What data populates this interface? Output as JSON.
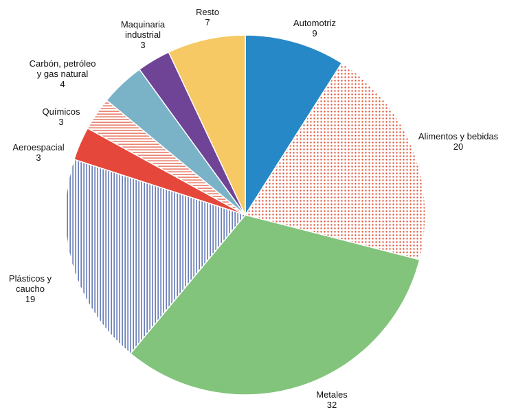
{
  "chart_data": {
    "type": "pie",
    "title": "",
    "categories": [
      "Automotriz",
      "Alimentos y bebidas",
      "Metales",
      "Plásticos y caucho",
      "Aeroespacial",
      "Químicos",
      "Carbón, petróleo y gas natural",
      "Maquinaria industrial",
      "Resto"
    ],
    "values": [
      9,
      20,
      32,
      19,
      3,
      3,
      4,
      3,
      7
    ],
    "slices": [
      {
        "label_lines": [
          "Automotriz"
        ],
        "value_text": "9",
        "value": 9,
        "color": "#2788c8",
        "fill": "solid",
        "fill_bg": "#2788c8"
      },
      {
        "label_lines": [
          "Alimentos y bebidas"
        ],
        "value_text": "20",
        "value": 20,
        "color": "#e0553b",
        "fill": "dots",
        "fill_bg": "#ffffff"
      },
      {
        "label_lines": [
          "Metales"
        ],
        "value_text": "32",
        "value": 32,
        "color": "#82c47c",
        "fill": "solid",
        "fill_bg": "#82c47c"
      },
      {
        "label_lines": [
          "Plásticos y",
          "caucho"
        ],
        "value_text": "19",
        "value": 19,
        "color": "#2f4b9b",
        "fill": "vlines",
        "fill_bg": "#ffffff"
      },
      {
        "label_lines": [
          "Aeroespacial"
        ],
        "value_text": "3",
        "value": 3,
        "color": "#e5483a",
        "fill": "solid",
        "fill_bg": "#e5483a"
      },
      {
        "label_lines": [
          "Químicos"
        ],
        "value_text": "3",
        "value": 3,
        "color": "#e0553b",
        "fill": "hlines",
        "fill_bg": "#ffffff"
      },
      {
        "label_lines": [
          "Carbón, petróleo",
          "y gas natural"
        ],
        "value_text": "4",
        "value": 4,
        "color": "#7ab3c8",
        "fill": "solid",
        "fill_bg": "#7ab3c8"
      },
      {
        "label_lines": [
          "Maquinaria",
          "industrial"
        ],
        "value_text": "3",
        "value": 3,
        "color": "#6f4396",
        "fill": "solid",
        "fill_bg": "#6f4396"
      },
      {
        "label_lines": [
          "Resto"
        ],
        "value_text": "7",
        "value": 7,
        "color": "#f6c964",
        "fill": "solid",
        "fill_bg": "#f6c964"
      }
    ]
  }
}
